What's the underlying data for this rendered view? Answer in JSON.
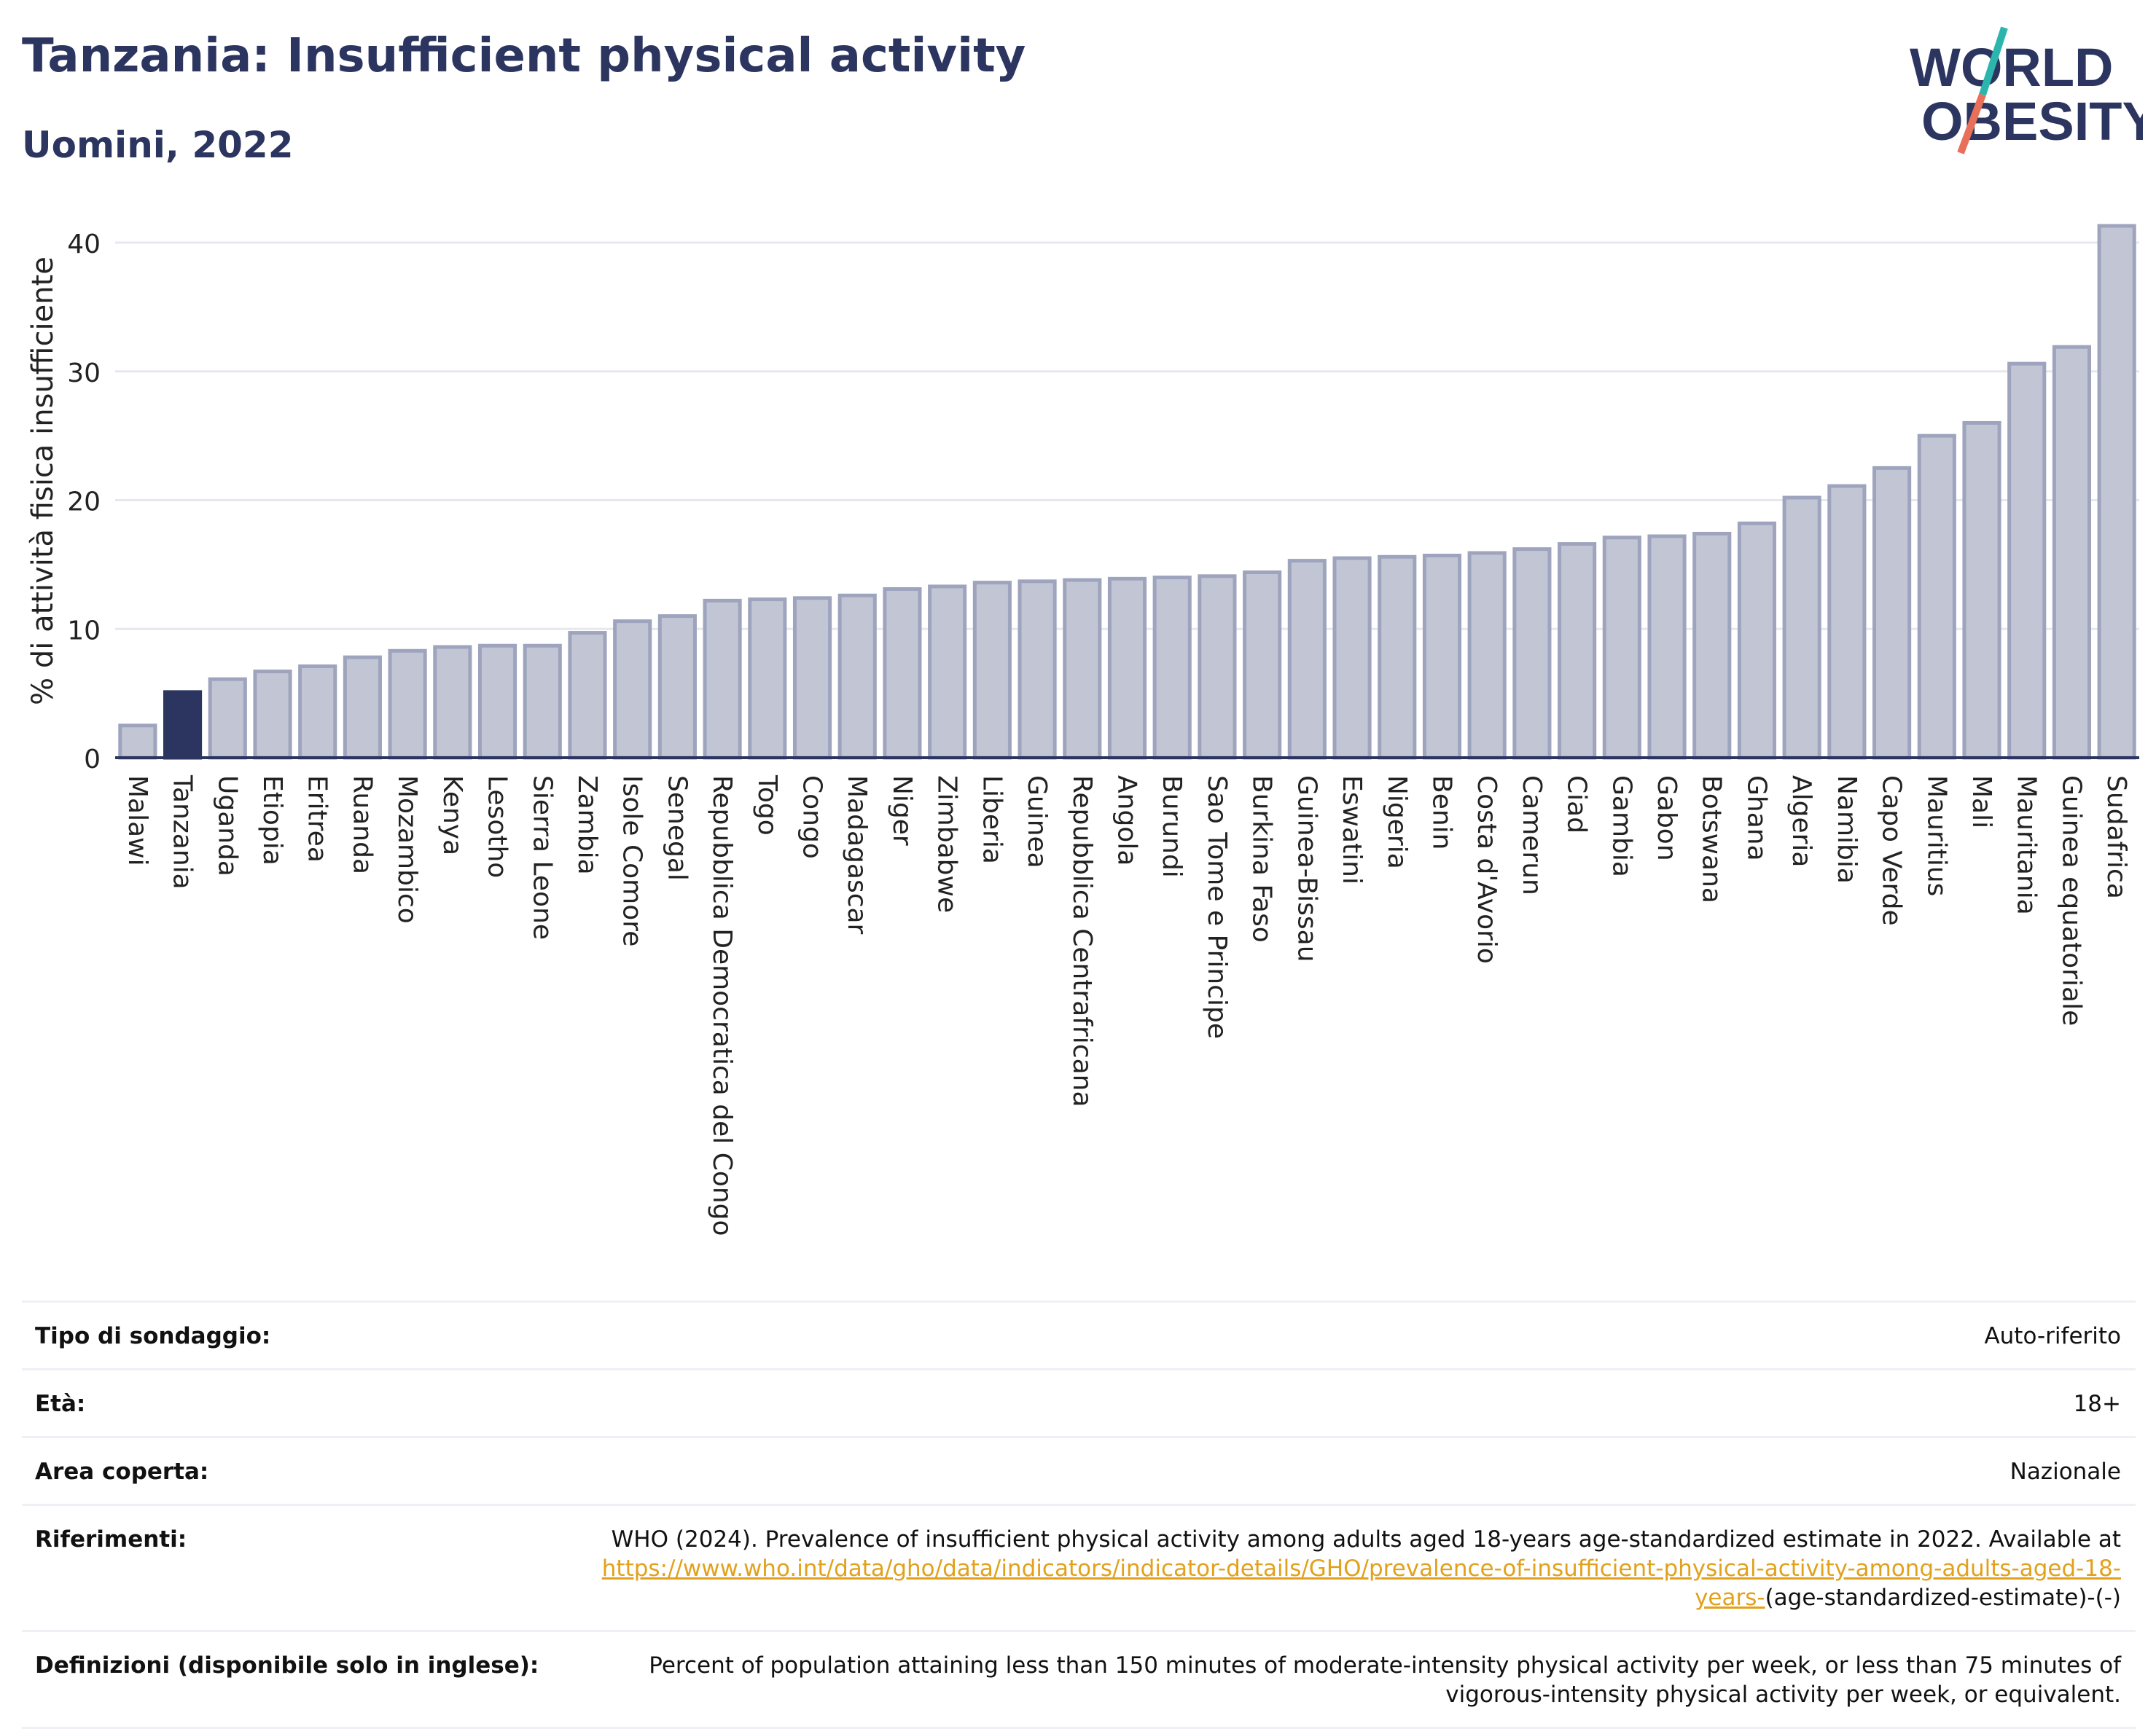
{
  "header": {
    "title": "Tanzania: Insufficient physical activity",
    "subtitle": "Uomini, 2022",
    "logo_line1": "WORLD",
    "logo_line2": "OBESITY"
  },
  "colors": {
    "title": "#2b3560",
    "bar_default": "#c2c6d4",
    "bar_default_stroke": "#9ea4bd",
    "bar_highlight": "#2b3560",
    "link": "#e2a11c",
    "logo_teal": "#2bb5ad",
    "logo_coral": "#e8705a"
  },
  "chart_data": {
    "type": "bar",
    "ylabel": "% di attività fisica insufficiente",
    "ylim": [
      0,
      43
    ],
    "yticks": [
      0,
      10,
      20,
      30,
      40
    ],
    "grid": true,
    "highlight": "Tanzania",
    "categories": [
      "Malawi",
      "Tanzania",
      "Uganda",
      "Etiopia",
      "Eritrea",
      "Ruanda",
      "Mozambico",
      "Kenya",
      "Lesotho",
      "Sierra Leone",
      "Zambia",
      "Isole Comore",
      "Senegal",
      "Repubblica Democratica del Congo",
      "Togo",
      "Congo",
      "Madagascar",
      "Niger",
      "Zimbabwe",
      "Liberia",
      "Guinea",
      "Repubblica Centrafricana",
      "Angola",
      "Burundi",
      "Sao Tome e Principe",
      "Burkina Faso",
      "Guinea-Bissau",
      "Eswatini",
      "Nigeria",
      "Benin",
      "Costa d'Avorio",
      "Camerun",
      "Ciad",
      "Gambia",
      "Gabon",
      "Botswana",
      "Ghana",
      "Algeria",
      "Namibia",
      "Capo Verde",
      "Mauritius",
      "Mali",
      "Mauritania",
      "Guinea equatoriale",
      "Sudafrica"
    ],
    "values": [
      2.5,
      5.1,
      6.1,
      6.7,
      7.1,
      7.8,
      8.3,
      8.6,
      8.7,
      8.7,
      9.7,
      10.6,
      11.0,
      12.2,
      12.3,
      12.4,
      12.6,
      13.1,
      13.3,
      13.6,
      13.7,
      13.8,
      13.9,
      14.0,
      14.1,
      14.4,
      15.3,
      15.5,
      15.6,
      15.7,
      15.9,
      16.2,
      16.6,
      17.1,
      17.2,
      17.4,
      18.2,
      20.2,
      21.1,
      22.5,
      25.0,
      26.0,
      30.6,
      31.9,
      41.3
    ]
  },
  "info": {
    "survey_label": "Tipo di sondaggio:",
    "survey_value": "Auto-riferito",
    "age_label": "Età:",
    "age_value": "18+",
    "area_label": "Area coperta:",
    "area_value": "Nazionale",
    "refs_label": "Riferimenti:",
    "refs_text": "WHO (2024). Prevalence of insufficient physical activity among adults aged 18-years age-standardized estimate in 2022. Available at",
    "refs_link": "https://www.who.int/data/gho/data/indicators/indicator-details/GHO/prevalence-of-insufficient-physical-activity-among-adults-aged-18-years-",
    "refs_suffix": "(age-standardized-estimate)-(-)",
    "defs_label": "Definizioni (disponibile solo in inglese):",
    "defs_text": "Percent of population attaining less than 150 minutes of moderate-intensity physical activity per week, or less than 75 minutes of vigorous-intensity physical activity per week, or equivalent."
  }
}
